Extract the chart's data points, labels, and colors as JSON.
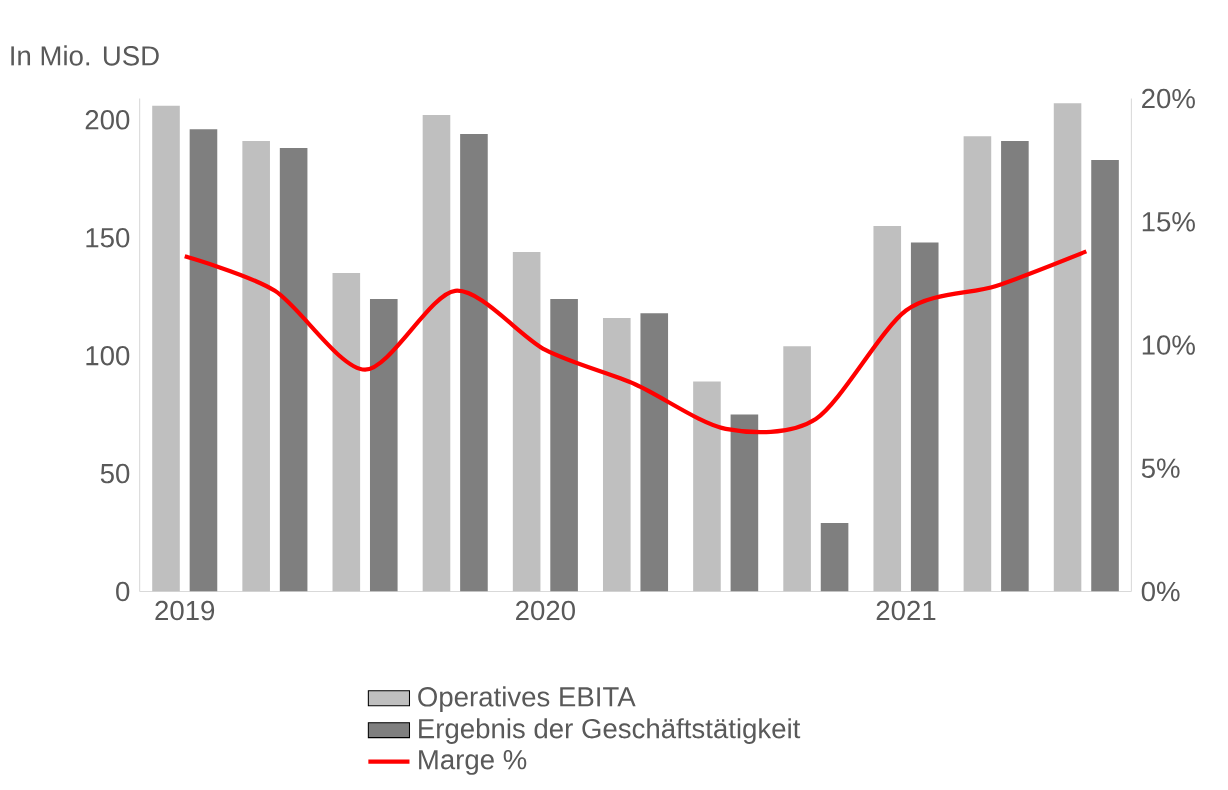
{
  "chart_data": {
    "type": "bar",
    "ylabel": "In Mio. USD",
    "categories": [
      "2019",
      null,
      null,
      null,
      "2020",
      null,
      null,
      null,
      "2021",
      null,
      null
    ],
    "series": [
      {
        "name": "Operatives EBITA",
        "color": "#bfbfbf",
        "values": [
          206,
          191,
          135,
          202,
          144,
          116,
          89,
          104,
          155,
          193,
          207
        ]
      },
      {
        "name": "Ergebnis der Geschäftstätigkeit",
        "color": "#7f7f7f",
        "values": [
          196,
          188,
          124,
          194,
          124,
          118,
          75,
          29,
          148,
          191,
          183
        ]
      },
      {
        "name": "Marge %",
        "type": "line",
        "axis": "y2",
        "color": "#ff0000",
        "values": [
          13.6,
          12.2,
          9.0,
          12.2,
          9.8,
          8.4,
          6.6,
          7.0,
          11.4,
          12.4,
          13.8
        ]
      }
    ],
    "ylim": [
      0,
      209
    ],
    "yticks": [
      0,
      50,
      100,
      150,
      200
    ],
    "y2lim": [
      0,
      20
    ],
    "y2ticks": [
      {
        "value": 0,
        "label": "0%"
      },
      {
        "value": 5,
        "label": "5%"
      },
      {
        "value": 10,
        "label": "10%"
      },
      {
        "value": 15,
        "label": "15%"
      },
      {
        "value": 20,
        "label": "20%"
      }
    ],
    "legend": "bottom"
  }
}
